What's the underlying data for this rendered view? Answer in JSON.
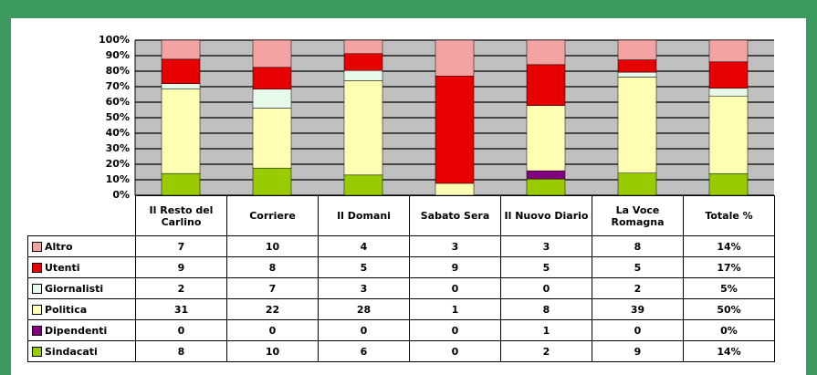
{
  "chart_data": {
    "type": "stacked_bar_100",
    "categories": [
      "Il Resto del Carlino",
      "Corriere",
      "Il Domani",
      "Sabato Sera",
      "Il Nuovo Diario",
      "La Voce Romagna",
      "Totale %"
    ],
    "series": [
      {
        "name": "Sindacati",
        "color": "#99cc00",
        "values": [
          8,
          10,
          6,
          0,
          2,
          9,
          14
        ],
        "value_labels": [
          "8",
          "10",
          "6",
          "0",
          "2",
          "9",
          "14%"
        ]
      },
      {
        "name": "Dipendenti",
        "color": "#800080",
        "values": [
          0,
          0,
          0,
          0,
          1,
          0,
          0
        ],
        "value_labels": [
          "0",
          "0",
          "0",
          "0",
          "1",
          "0",
          "0%"
        ]
      },
      {
        "name": "Politica",
        "color": "#ffffb3",
        "values": [
          31,
          22,
          28,
          1,
          8,
          39,
          50
        ],
        "value_labels": [
          "31",
          "22",
          "28",
          "1",
          "8",
          "39",
          "50%"
        ]
      },
      {
        "name": "Giornalisti",
        "color": "#e6fae9",
        "values": [
          2,
          7,
          3,
          0,
          0,
          2,
          5
        ],
        "value_labels": [
          "2",
          "7",
          "3",
          "0",
          "0",
          "2",
          "5%"
        ]
      },
      {
        "name": "Utenti",
        "color": "#e60000",
        "values": [
          9,
          8,
          5,
          9,
          5,
          5,
          17
        ],
        "value_labels": [
          "9",
          "8",
          "5",
          "9",
          "5",
          "5",
          "17%"
        ]
      },
      {
        "name": "Altro",
        "color": "#f4a3a3",
        "values": [
          7,
          10,
          4,
          3,
          3,
          8,
          14
        ],
        "value_labels": [
          "7",
          "10",
          "4",
          "3",
          "3",
          "8",
          "14%"
        ]
      }
    ],
    "ylim": [
      0,
      100
    ],
    "yticks": [
      {
        "value": 0,
        "label": "0%"
      },
      {
        "value": 10,
        "label": "10%"
      },
      {
        "value": 20,
        "label": "20%"
      },
      {
        "value": 30,
        "label": "30%"
      },
      {
        "value": 40,
        "label": "40%"
      },
      {
        "value": 50,
        "label": "50%"
      },
      {
        "value": 60,
        "label": "60%"
      },
      {
        "value": 70,
        "label": "70%"
      },
      {
        "value": 80,
        "label": "80%"
      },
      {
        "value": 90,
        "label": "90%"
      },
      {
        "value": 100,
        "label": "100%"
      }
    ],
    "grid": true
  }
}
